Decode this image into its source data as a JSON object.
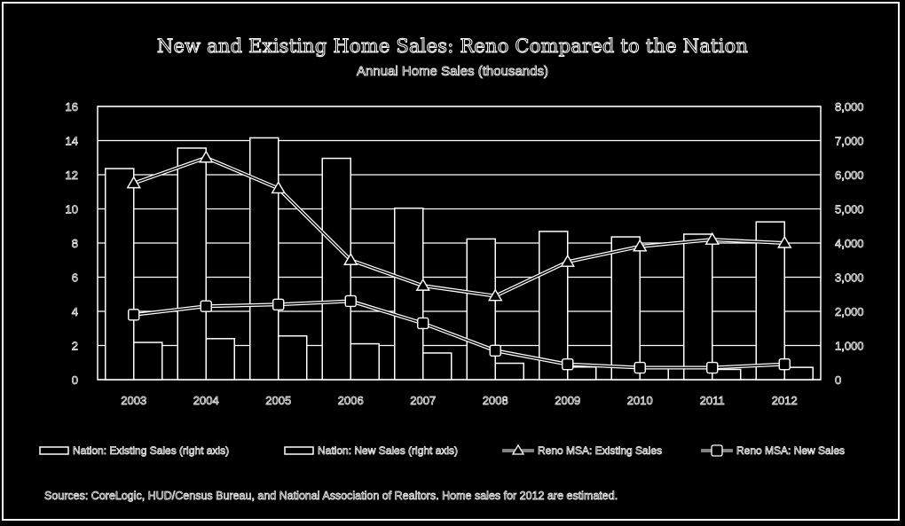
{
  "chart_data": {
    "type": "bar",
    "title": "New and Existing Home Sales: Reno Compared to the Nation",
    "subtitle": "Annual Home Sales (thousands)",
    "categories": [
      "2003",
      "2004",
      "2005",
      "2006",
      "2007",
      "2008",
      "2009",
      "2010",
      "2011",
      "2012"
    ],
    "left_axis": {
      "ylim": [
        0,
        16
      ],
      "ticks": [
        "0",
        "2",
        "4",
        "6",
        "8",
        "10",
        "12",
        "14",
        "16"
      ]
    },
    "right_axis": {
      "ylim": [
        0,
        8000
      ],
      "ticks": [
        "0",
        "1,000",
        "2,000",
        "3,000",
        "4,000",
        "5,000",
        "6,000",
        "7,000",
        "8,000"
      ]
    },
    "grid": true,
    "legend_position": "bottom",
    "series": [
      {
        "name": "Nation: Existing Sales (right axis)",
        "kind": "bar",
        "axis": "right",
        "values": [
          6180,
          6780,
          7080,
          6480,
          5020,
          4120,
          4340,
          4180,
          4260,
          4620
        ]
      },
      {
        "name": "Nation: New Sales (right axis)",
        "kind": "bar",
        "axis": "right",
        "values": [
          1090,
          1200,
          1280,
          1050,
          780,
          480,
          370,
          320,
          300,
          360
        ]
      },
      {
        "name": "Reno MSA: Existing Sales",
        "kind": "line",
        "marker": "triangle",
        "axis": "left",
        "values": [
          11.5,
          13.0,
          11.2,
          7.0,
          5.5,
          4.9,
          6.9,
          7.8,
          8.2,
          8.0
        ]
      },
      {
        "name": "Reno MSA: New Sales",
        "kind": "line",
        "marker": "square",
        "axis": "left",
        "values": [
          3.8,
          4.3,
          4.4,
          4.6,
          3.3,
          1.7,
          0.9,
          0.7,
          0.7,
          0.9
        ]
      }
    ]
  },
  "legend": {
    "items": [
      "Nation: Existing Sales (right axis)",
      "Nation: New Sales (right axis)",
      "Reno MSA: Existing Sales",
      "Reno MSA: New Sales"
    ]
  },
  "source_note": "Sources: CoreLogic, HUD/Census  Bureau, and National Association of Realtors. Home sales for 2012 are estimated."
}
